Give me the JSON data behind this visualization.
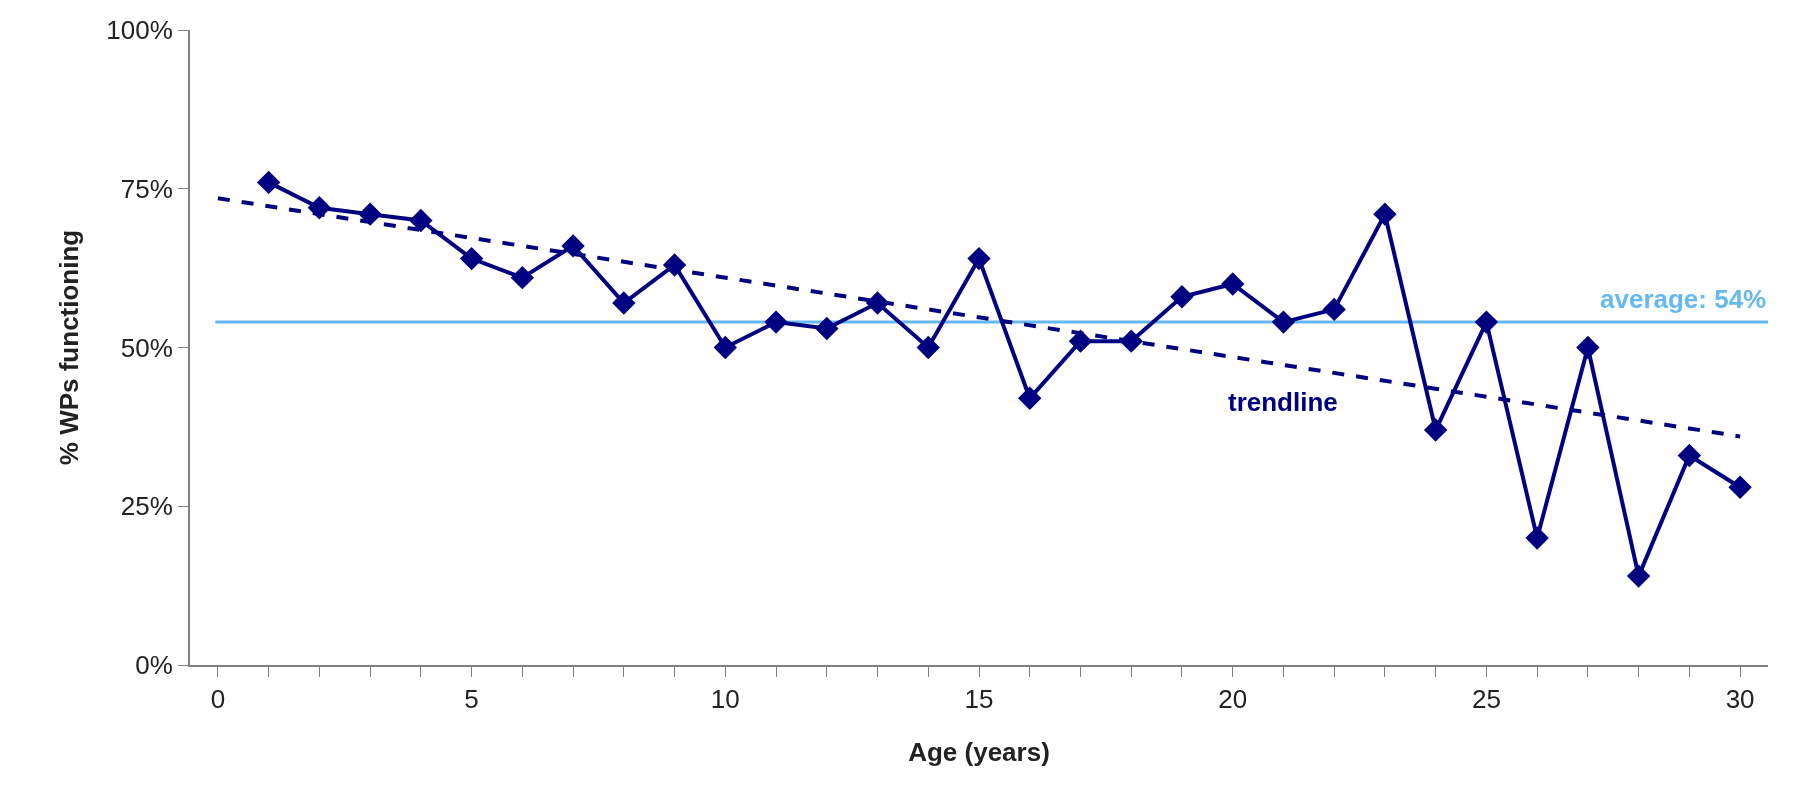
{
  "chart_data": {
    "type": "line",
    "xlabel": "Age (years)",
    "ylabel": "% WPs functioning",
    "x": [
      1,
      2,
      3,
      4,
      5,
      6,
      7,
      8,
      9,
      10,
      11,
      12,
      13,
      14,
      15,
      16,
      17,
      18,
      19,
      20,
      21,
      22,
      23,
      24,
      25,
      26,
      27,
      28,
      29,
      30
    ],
    "series": [
      {
        "color": "#000080",
        "marker": "diamond",
        "line_style": "solid",
        "values": [
          76,
          72,
          71,
          70,
          64,
          61,
          66,
          57,
          63,
          50,
          54,
          53,
          57,
          50,
          64,
          42,
          51,
          51,
          58,
          60,
          54,
          56,
          71,
          37,
          54,
          20,
          50,
          14,
          33,
          28
        ]
      },
      {
        "name": "trendline",
        "color": "#000080",
        "marker": "none",
        "line_style": "dashed",
        "x": [
          0,
          30
        ],
        "values": [
          73.5,
          36
        ]
      }
    ],
    "ref_lines": [
      {
        "axis": "y",
        "value": 54,
        "label": "average: 54%",
        "color": "#66b8f2"
      }
    ],
    "xlim": [
      -0.55,
      30.55
    ],
    "xticks": [
      0,
      {
        "value": 1,
        "label": null
      },
      {
        "value": 2,
        "label": null
      },
      {
        "value": 3,
        "label": null
      },
      {
        "value": 4,
        "label": null
      },
      5,
      {
        "value": 6,
        "label": null
      },
      {
        "value": 7,
        "label": null
      },
      {
        "value": 8,
        "label": null
      },
      {
        "value": 9,
        "label": null
      },
      10,
      {
        "value": 11,
        "label": null
      },
      {
        "value": 12,
        "label": null
      },
      {
        "value": 13,
        "label": null
      },
      {
        "value": 14,
        "label": null
      },
      15,
      {
        "value": 16,
        "label": null
      },
      {
        "value": 17,
        "label": null
      },
      {
        "value": 18,
        "label": null
      },
      {
        "value": 19,
        "label": null
      },
      20,
      {
        "value": 21,
        "label": null
      },
      {
        "value": 22,
        "label": null
      },
      {
        "value": 23,
        "label": null
      },
      {
        "value": 24,
        "label": null
      },
      25,
      {
        "value": 26,
        "label": null
      },
      {
        "value": 27,
        "label": null
      },
      {
        "value": 28,
        "label": null
      },
      {
        "value": 29,
        "label": null
      },
      30
    ],
    "ylim": [
      0,
      100
    ],
    "yticks": [
      {
        "value": 0,
        "label": "0%"
      },
      {
        "value": 25,
        "label": "25%"
      },
      {
        "value": 50,
        "label": "50%"
      },
      {
        "value": 75,
        "label": "75%"
      },
      {
        "value": 100,
        "label": "100%"
      }
    ],
    "grid": false,
    "legend": false
  }
}
